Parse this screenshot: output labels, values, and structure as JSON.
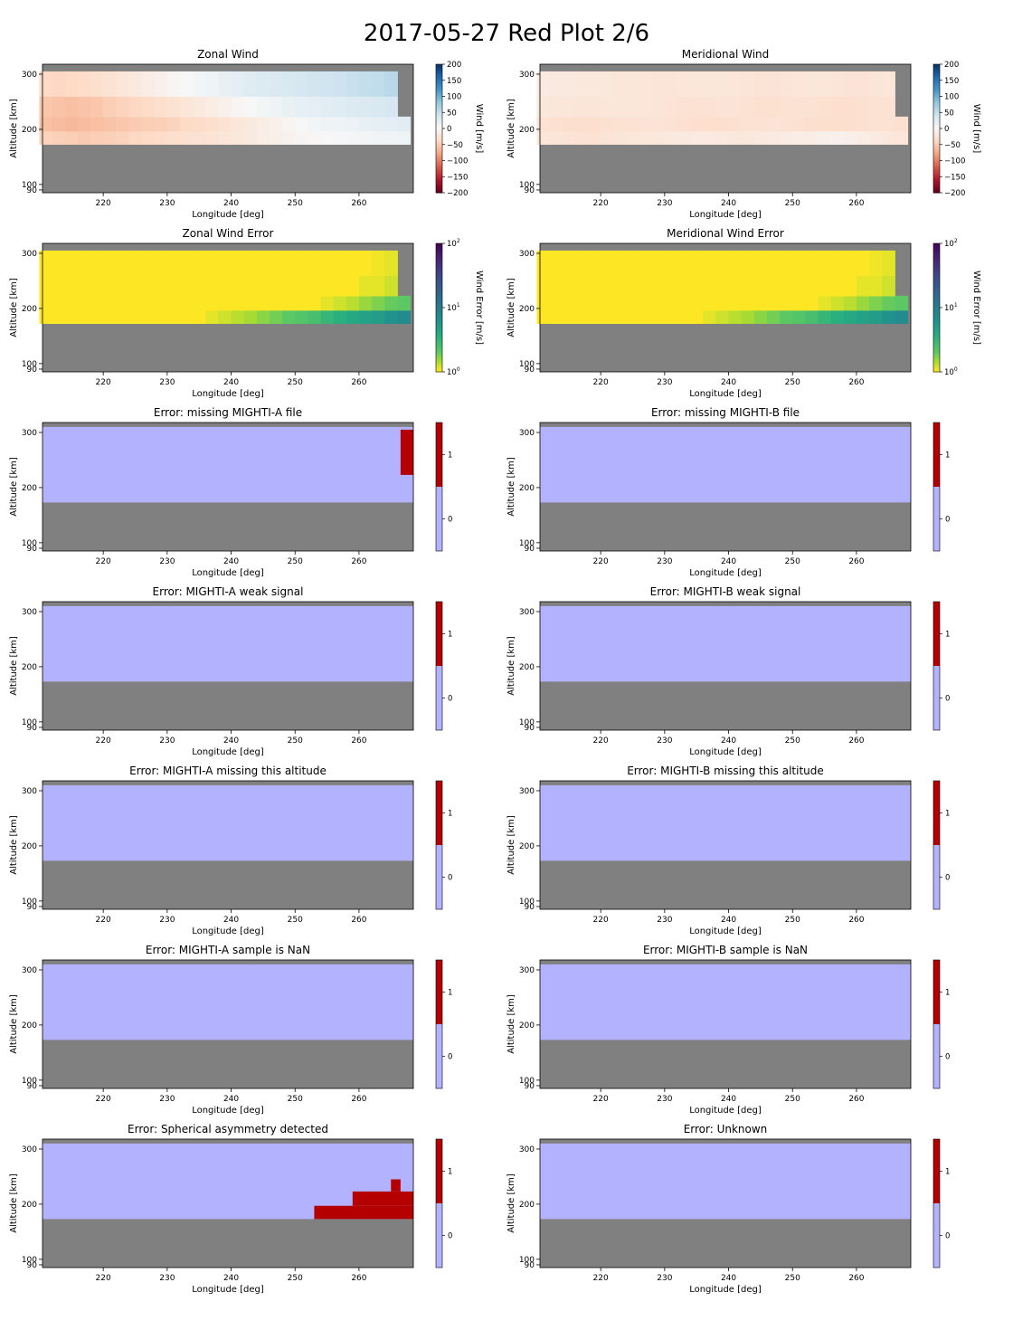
{
  "figure": {
    "title": "2017-05-27 Red Plot 2/6"
  },
  "colors": {
    "no_data": "#808080",
    "flag_off": "#b2b2ff",
    "flag_on": "#b40000"
  },
  "axes_common": {
    "xlabel": "Longitude [deg]",
    "ylabel": "Altitude [km]",
    "xticks": [
      220,
      230,
      240,
      250,
      260
    ],
    "yticks": [
      90,
      100,
      200,
      300
    ],
    "xlim": [
      210.5,
      268.5
    ],
    "ylim": [
      85,
      318
    ],
    "data_region_alt": [
      173,
      310
    ]
  },
  "chart_data": [
    {
      "type": "heatmap",
      "title": "Zonal Wind",
      "colormap": "RdBu",
      "colorbar": {
        "label": "Wind [m/s]",
        "range": [
          -200,
          200
        ],
        "ticks": [
          "200",
          "150",
          "100",
          "50",
          "0",
          "−50",
          "−100",
          "−150",
          "−200"
        ]
      },
      "note": "values approximate; 4 altitude bands (low to high), wind in m/s at longitude columns 211-267",
      "lon_columns": [
        211,
        213,
        215,
        217,
        219,
        221,
        223,
        225,
        227,
        229,
        231,
        233,
        235,
        237,
        239,
        241,
        243,
        245,
        247,
        249,
        251,
        253,
        255,
        257,
        259,
        261,
        263,
        265,
        267
      ],
      "bands": [
        {
          "alt": [
            173,
            197
          ],
          "wind": [
            -45,
            -48,
            -50,
            -52,
            -50,
            -48,
            -45,
            -42,
            -40,
            -38,
            -35,
            -32,
            -30,
            -28,
            -25,
            -22,
            -18,
            -15,
            -12,
            -8,
            -5,
            -2,
            0,
            2,
            4,
            5,
            6,
            8,
            10
          ]
        },
        {
          "alt": [
            197,
            223
          ],
          "wind": [
            -60,
            -62,
            -65,
            -63,
            -60,
            -58,
            -55,
            -52,
            -50,
            -48,
            -45,
            -40,
            -38,
            -35,
            -30,
            -25,
            -20,
            -15,
            -10,
            -5,
            0,
            5,
            8,
            10,
            12,
            15,
            18,
            20,
            22
          ]
        },
        {
          "alt": [
            223,
            260
          ],
          "wind": [
            -55,
            -58,
            -60,
            -58,
            -55,
            -50,
            -45,
            -42,
            -38,
            -35,
            -30,
            -25,
            -20,
            -15,
            -10,
            -5,
            0,
            5,
            10,
            15,
            18,
            20,
            22,
            25,
            28,
            30,
            32,
            35,
            null
          ]
        },
        {
          "alt": [
            260,
            305
          ],
          "wind": [
            -40,
            -42,
            -40,
            -38,
            -35,
            -30,
            -25,
            -20,
            -15,
            -10,
            -5,
            0,
            5,
            10,
            15,
            20,
            25,
            28,
            30,
            32,
            35,
            38,
            40,
            42,
            45,
            48,
            50,
            55,
            null
          ]
        }
      ]
    },
    {
      "type": "heatmap",
      "title": "Meridional Wind",
      "colormap": "RdBu",
      "colorbar": {
        "label": "Wind [m/s]",
        "range": [
          -200,
          200
        ],
        "ticks": [
          "200",
          "150",
          "100",
          "50",
          "0",
          "−50",
          "−100",
          "−150",
          "−200"
        ]
      },
      "note": "values approximate",
      "lon_columns": [
        211,
        213,
        215,
        217,
        219,
        221,
        223,
        225,
        227,
        229,
        231,
        233,
        235,
        237,
        239,
        241,
        243,
        245,
        247,
        249,
        251,
        253,
        255,
        257,
        259,
        261,
        263,
        265,
        267
      ],
      "bands": [
        {
          "alt": [
            173,
            197
          ],
          "wind": [
            -25,
            -26,
            -28,
            -30,
            -30,
            -28,
            -26,
            -25,
            -24,
            -22,
            -20,
            -20,
            -18,
            -18,
            -20,
            -22,
            -22,
            -20,
            -18,
            -16,
            -15,
            -14,
            -12,
            -10,
            -12,
            -15,
            -18,
            -22,
            -25
          ]
        },
        {
          "alt": [
            197,
            223
          ],
          "wind": [
            -30,
            -32,
            -34,
            -35,
            -34,
            -32,
            -30,
            -30,
            -28,
            -28,
            -30,
            -32,
            -34,
            -35,
            -34,
            -32,
            -30,
            -30,
            -28,
            -30,
            -32,
            -34,
            -35,
            -35,
            -34,
            -32,
            -30,
            -30,
            -32
          ]
        },
        {
          "alt": [
            223,
            260
          ],
          "wind": [
            -22,
            -24,
            -25,
            -26,
            -26,
            -25,
            -24,
            -24,
            -25,
            -26,
            -28,
            -30,
            -30,
            -30,
            -28,
            -28,
            -30,
            -32,
            -32,
            -30,
            -30,
            -30,
            -32,
            -34,
            -34,
            -32,
            -30,
            -30,
            null
          ]
        },
        {
          "alt": [
            260,
            305
          ],
          "wind": [
            -18,
            -20,
            -20,
            -22,
            -22,
            -22,
            -24,
            -24,
            -25,
            -26,
            -26,
            -25,
            -25,
            -24,
            -24,
            -25,
            -26,
            -28,
            -28,
            -26,
            -25,
            -24,
            -25,
            -26,
            -28,
            -28,
            -26,
            -25,
            null
          ]
        }
      ]
    },
    {
      "type": "heatmap",
      "title": "Zonal Wind Error",
      "colormap": "viridis_r",
      "scale": "log",
      "colorbar": {
        "label": "Wind Error [m/s]",
        "range": [
          1,
          100
        ],
        "ticks": [
          "10",
          "10",
          "10"
        ],
        "tick_exponents": [
          "2",
          "1",
          "0"
        ]
      },
      "note": "values approximate, m/s",
      "lon_columns": [
        211,
        213,
        215,
        217,
        219,
        221,
        223,
        225,
        227,
        229,
        231,
        233,
        235,
        237,
        239,
        241,
        243,
        245,
        247,
        249,
        251,
        253,
        255,
        257,
        259,
        261,
        263,
        265,
        267
      ],
      "bands": [
        {
          "alt": [
            173,
            197
          ],
          "err": [
            1,
            1,
            1,
            1,
            1,
            1,
            1,
            1,
            1,
            1,
            1,
            1,
            1,
            1.1,
            1.2,
            1.3,
            1.4,
            1.6,
            1.8,
            2,
            2.2,
            2.5,
            3,
            3.5,
            4,
            4.5,
            5,
            6,
            7
          ]
        },
        {
          "alt": [
            197,
            223
          ],
          "err": [
            1,
            1,
            1,
            1,
            1,
            1,
            1,
            1,
            1,
            1,
            1,
            1,
            1,
            1,
            1,
            1,
            1,
            1,
            1,
            1,
            1,
            1,
            1.1,
            1.2,
            1.3,
            1.5,
            1.7,
            1.9,
            2
          ]
        },
        {
          "alt": [
            223,
            260
          ],
          "err": [
            1,
            1,
            1,
            1,
            1,
            1,
            1,
            1,
            1,
            1,
            1,
            1,
            1,
            1,
            1,
            1,
            1,
            1,
            1,
            1,
            1,
            1,
            1,
            1,
            1,
            1.1,
            1.1,
            1.2,
            null
          ]
        },
        {
          "alt": [
            260,
            305
          ],
          "err": [
            1,
            1,
            1,
            1,
            1,
            1,
            1,
            1,
            1,
            1,
            1,
            1,
            1,
            1,
            1,
            1,
            1,
            1,
            1,
            1,
            1,
            1,
            1,
            1,
            1,
            1,
            1.05,
            1.1,
            null
          ]
        }
      ]
    },
    {
      "type": "heatmap",
      "title": "Meridional Wind Error",
      "colormap": "viridis_r",
      "scale": "log",
      "colorbar": {
        "label": "Wind Error [m/s]",
        "range": [
          1,
          100
        ],
        "ticks": [
          "10",
          "10",
          "10"
        ],
        "tick_exponents": [
          "2",
          "1",
          "0"
        ]
      },
      "note": "values approximate, m/s",
      "lon_columns": [
        211,
        213,
        215,
        217,
        219,
        221,
        223,
        225,
        227,
        229,
        231,
        233,
        235,
        237,
        239,
        241,
        243,
        245,
        247,
        249,
        251,
        253,
        255,
        257,
        259,
        261,
        263,
        265,
        267
      ],
      "bands": [
        {
          "alt": [
            173,
            197
          ],
          "err": [
            1,
            1,
            1,
            1,
            1,
            1,
            1,
            1,
            1,
            1,
            1,
            1,
            1,
            1.1,
            1.2,
            1.3,
            1.4,
            1.6,
            1.8,
            2,
            2.2,
            2.5,
            3,
            3.5,
            4,
            4.5,
            5,
            6,
            7
          ]
        },
        {
          "alt": [
            197,
            223
          ],
          "err": [
            1,
            1,
            1,
            1,
            1,
            1,
            1,
            1,
            1,
            1,
            1,
            1,
            1,
            1,
            1,
            1,
            1,
            1,
            1,
            1,
            1,
            1,
            1.1,
            1.2,
            1.3,
            1.5,
            1.7,
            1.9,
            2
          ]
        },
        {
          "alt": [
            223,
            260
          ],
          "err": [
            1,
            1,
            1,
            1,
            1,
            1,
            1,
            1,
            1,
            1,
            1,
            1,
            1,
            1,
            1,
            1,
            1,
            1,
            1,
            1,
            1,
            1,
            1,
            1,
            1,
            1.1,
            1.1,
            1.2,
            null
          ]
        },
        {
          "alt": [
            260,
            305
          ],
          "err": [
            1,
            1,
            1,
            1,
            1,
            1,
            1,
            1,
            1,
            1,
            1,
            1,
            1,
            1,
            1,
            1,
            1,
            1,
            1,
            1,
            1,
            1,
            1,
            1,
            1,
            1,
            1.05,
            1.1,
            null
          ]
        }
      ]
    },
    {
      "type": "heatmap",
      "title": "Error: missing MIGHTI-A file",
      "colorbar": {
        "ticks": [
          "1",
          "0"
        ]
      },
      "flagged": [
        {
          "lon": [
            266.5,
            268.5
          ],
          "alt": [
            223,
            305
          ]
        }
      ]
    },
    {
      "type": "heatmap",
      "title": "Error: missing MIGHTI-B file",
      "colorbar": {
        "ticks": [
          "1",
          "0"
        ]
      },
      "flagged": []
    },
    {
      "type": "heatmap",
      "title": "Error: MIGHTI-A weak signal",
      "colorbar": {
        "ticks": [
          "1",
          "0"
        ]
      },
      "flagged": []
    },
    {
      "type": "heatmap",
      "title": "Error: MIGHTI-B weak signal",
      "colorbar": {
        "ticks": [
          "1",
          "0"
        ]
      },
      "flagged": []
    },
    {
      "type": "heatmap",
      "title": "Error: MIGHTI-A missing this altitude",
      "colorbar": {
        "ticks": [
          "1",
          "0"
        ]
      },
      "flagged": []
    },
    {
      "type": "heatmap",
      "title": "Error: MIGHTI-B missing this altitude",
      "colorbar": {
        "ticks": [
          "1",
          "0"
        ]
      },
      "flagged": []
    },
    {
      "type": "heatmap",
      "title": "Error: MIGHTI-A sample is NaN",
      "colorbar": {
        "ticks": [
          "1",
          "0"
        ]
      },
      "flagged": []
    },
    {
      "type": "heatmap",
      "title": "Error: MIGHTI-B sample is NaN",
      "colorbar": {
        "ticks": [
          "1",
          "0"
        ]
      },
      "flagged": []
    },
    {
      "type": "heatmap",
      "title": "Error: Spherical asymmetry detected",
      "colorbar": {
        "ticks": [
          "1",
          "0"
        ]
      },
      "flagged": [
        {
          "lon": [
            253,
            268.5
          ],
          "alt": [
            173,
            197
          ]
        },
        {
          "lon": [
            259,
            268.5
          ],
          "alt": [
            197,
            223
          ]
        },
        {
          "lon": [
            265,
            266.5
          ],
          "alt": [
            223,
            245
          ]
        }
      ]
    },
    {
      "type": "heatmap",
      "title": "Error: Unknown",
      "colorbar": {
        "ticks": [
          "1",
          "0"
        ]
      },
      "flagged": []
    }
  ]
}
